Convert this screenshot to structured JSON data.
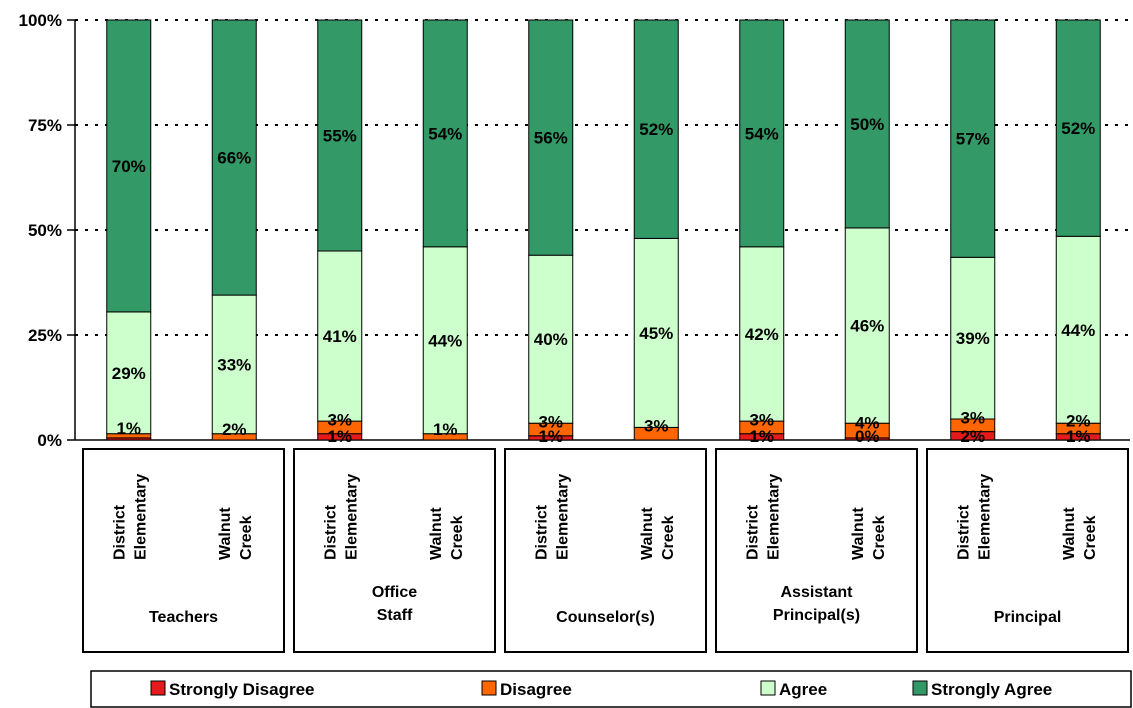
{
  "chart_data": {
    "type": "bar",
    "stacked": true,
    "percent": true,
    "ylim": [
      0,
      100
    ],
    "yticks": [
      "0%",
      "25%",
      "50%",
      "75%",
      "100%"
    ],
    "grid": "horizontal-dotted",
    "legend_position": "bottom",
    "categories": [
      {
        "group": "Teachers",
        "label": [
          "District",
          "Elementary"
        ]
      },
      {
        "group": "Teachers",
        "label": [
          "Walnut",
          "Creek"
        ]
      },
      {
        "group": "Office Staff",
        "label": [
          "District",
          "Elementary"
        ]
      },
      {
        "group": "Office Staff",
        "label": [
          "Walnut",
          "Creek"
        ]
      },
      {
        "group": "Counselor(s)",
        "label": [
          "District",
          "Elementary"
        ]
      },
      {
        "group": "Counselor(s)",
        "label": [
          "Walnut",
          "Creek"
        ]
      },
      {
        "group": "Assistant Principal(s)",
        "label": [
          "District",
          "Elementary"
        ]
      },
      {
        "group": "Assistant Principal(s)",
        "label": [
          "Walnut",
          "Creek"
        ]
      },
      {
        "group": "Principal",
        "label": [
          "District",
          "Elementary"
        ]
      },
      {
        "group": "Principal",
        "label": [
          "Walnut",
          "Creek"
        ]
      }
    ],
    "groups": [
      {
        "label": [
          "Teachers"
        ],
        "span": [
          0,
          1
        ]
      },
      {
        "label": [
          "Office",
          "Staff"
        ],
        "span": [
          2,
          3
        ]
      },
      {
        "label": [
          "Counselor(s)"
        ],
        "span": [
          4,
          5
        ]
      },
      {
        "label": [
          "Assistant",
          "Principal(s)"
        ],
        "span": [
          6,
          7
        ]
      },
      {
        "label": [
          "Principal"
        ],
        "span": [
          8,
          9
        ]
      }
    ],
    "series": [
      {
        "name": "Strongly Disagree",
        "color": "#e41a1c",
        "values": [
          0.5,
          0,
          1.5,
          0,
          1,
          0,
          1.5,
          0.5,
          2,
          1.5
        ],
        "labels": [
          "",
          "",
          "1%",
          "",
          "1%",
          "",
          "1%",
          "0%",
          "2%",
          "1%"
        ]
      },
      {
        "name": "Disagree",
        "color": "#ff6600",
        "values": [
          1,
          1.5,
          3,
          1.5,
          3,
          3,
          3,
          3.5,
          3,
          2.5
        ],
        "labels": [
          "1%",
          "2%",
          "3%",
          "1%",
          "3%",
          "3%",
          "3%",
          "4%",
          "3%",
          "2%"
        ]
      },
      {
        "name": "Agree",
        "color": "#ccffcc",
        "values": [
          29,
          33,
          40.5,
          44.5,
          40,
          45,
          41.5,
          46.5,
          38.5,
          44.5
        ],
        "labels": [
          "29%",
          "33%",
          "41%",
          "44%",
          "40%",
          "45%",
          "42%",
          "46%",
          "39%",
          "44%"
        ]
      },
      {
        "name": "Strongly Agree",
        "color": "#339966",
        "values": [
          69.5,
          65.5,
          55,
          54,
          56,
          52,
          54,
          49.5,
          56.5,
          51.5
        ],
        "labels": [
          "70%",
          "66%",
          "55%",
          "54%",
          "56%",
          "52%",
          "54%",
          "50%",
          "57%",
          "52%"
        ]
      }
    ]
  }
}
